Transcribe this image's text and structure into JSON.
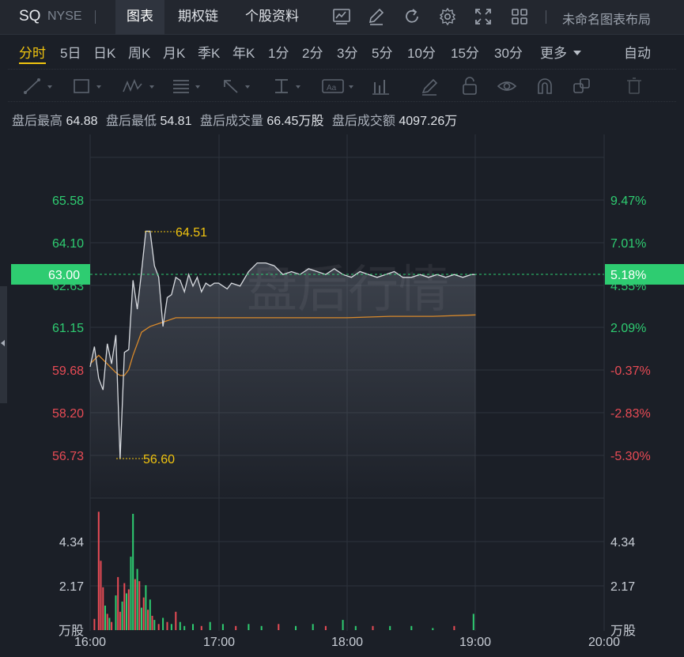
{
  "header": {
    "symbol": "SQ",
    "exchange": "NYSE",
    "tabs": [
      {
        "label": "图表",
        "active": true
      },
      {
        "label": "期权链",
        "active": false
      },
      {
        "label": "个股资料",
        "active": false
      }
    ],
    "toolbar_icons": [
      "chart-settings-icon",
      "edit-icon",
      "refresh-icon",
      "gear-icon",
      "fullscreen-icon",
      "grid-layout-icon"
    ],
    "layout_name": "未命名图表布局"
  },
  "periods": {
    "items": [
      "分时",
      "5日",
      "日K",
      "周K",
      "月K",
      "季K",
      "年K",
      "1分",
      "2分",
      "3分",
      "5分",
      "10分",
      "15分",
      "30分"
    ],
    "active": "分时",
    "more_label": "更多",
    "auto_label": "自动"
  },
  "drawing_tools": [
    "line-tool-icon",
    "rectangle-tool-icon",
    "wave-tool-icon",
    "fibonacci-tool-icon",
    "arrow-tool-icon",
    "measure-tool-icon",
    "text-tool-icon",
    "indicator-tool-icon",
    "brush-icon",
    "lock-icon",
    "eye-icon",
    "magnet-icon",
    "clone-icon",
    "trash-icon"
  ],
  "stats": {
    "high_label": "盘后最高",
    "high_value": "64.88",
    "low_label": "盘后最低",
    "low_value": "54.81",
    "volume_label": "盘后成交量",
    "volume_value": "66.45万股",
    "turnover_label": "盘后成交额",
    "turnover_value": "4097.26万"
  },
  "watermark": "盘后行情",
  "colors": {
    "up": "#2ecc71",
    "down": "#e84b55",
    "price_line": "#d8dbe0",
    "avg_line": "#d98a2b",
    "annotation": "#f1c40f",
    "current_badge": "#2ecc71"
  },
  "chart_data": {
    "type": "line",
    "title": "",
    "xlabel": "",
    "ylabel": "",
    "x_ticks": [
      "16:00",
      "17:00",
      "18:00",
      "19:00",
      "20:00"
    ],
    "price_axis": {
      "left_ticks": [
        "65.58",
        "64.10",
        "61.15",
        "59.68",
        "58.20",
        "56.73"
      ],
      "right_ticks": [
        "9.47%",
        "7.01%",
        "2.09%",
        "-0.37%",
        "-2.83%",
        "-5.30%"
      ],
      "hidden_left": "62.63",
      "hidden_right": "4.55%",
      "ylim": [
        55.26,
        67.05
      ]
    },
    "current_price": "63.00",
    "current_change": "5.18%",
    "high_marker": "64.51",
    "low_marker": "56.60",
    "price_series": {
      "name": "",
      "x_minutes": [
        0,
        2,
        4,
        6,
        8,
        10,
        12,
        14,
        16,
        18,
        20,
        22,
        24,
        26,
        28,
        30,
        32,
        34,
        36,
        38,
        40,
        42,
        44,
        46,
        48,
        50,
        52,
        54,
        56,
        58,
        60,
        62,
        64,
        66,
        70,
        74,
        78,
        82,
        86,
        90,
        94,
        98,
        102,
        106,
        110,
        114,
        118,
        122,
        126,
        130,
        134,
        138,
        142,
        146,
        150,
        154,
        158,
        162,
        166,
        170,
        174,
        178,
        180
      ],
      "values": [
        59.8,
        60.5,
        59.4,
        59.0,
        60.6,
        59.9,
        60.9,
        56.6,
        60.3,
        60.4,
        62.8,
        61.8,
        63.1,
        64.5,
        64.5,
        63.3,
        62.9,
        61.2,
        62.2,
        62.3,
        62.9,
        62.8,
        62.4,
        63.0,
        62.6,
        62.9,
        62.4,
        62.7,
        62.6,
        62.7,
        62.7,
        62.6,
        62.5,
        62.7,
        62.6,
        63.1,
        63.4,
        63.4,
        63.3,
        63.0,
        63.1,
        63.0,
        63.2,
        63.1,
        63.0,
        63.2,
        63.0,
        62.9,
        63.1,
        63.0,
        62.9,
        63.0,
        63.1,
        62.9,
        62.9,
        63.0,
        62.9,
        63.0,
        62.9,
        63.0,
        62.9,
        63.0,
        63.0
      ]
    },
    "avg_series": {
      "name": "",
      "x_minutes": [
        0,
        4,
        8,
        12,
        14,
        16,
        18,
        20,
        24,
        28,
        32,
        36,
        40,
        50,
        60,
        80,
        100,
        120,
        140,
        160,
        180
      ],
      "values": [
        59.9,
        60.2,
        59.9,
        59.6,
        59.5,
        59.5,
        59.7,
        60.2,
        61.0,
        61.2,
        61.3,
        61.4,
        61.5,
        61.5,
        61.5,
        61.5,
        61.5,
        61.5,
        61.55,
        61.55,
        61.6
      ]
    },
    "volume_axis": {
      "ticks": [
        "4.34",
        "2.17"
      ],
      "unit": "万股",
      "ylim": [
        0,
        6.0
      ]
    },
    "volume_series": {
      "name": "",
      "bars": [
        {
          "m": 2,
          "v": 0.55,
          "c": "down"
        },
        {
          "m": 4,
          "v": 5.8,
          "c": "down"
        },
        {
          "m": 5,
          "v": 3.4,
          "c": "down"
        },
        {
          "m": 6,
          "v": 2.1,
          "c": "down"
        },
        {
          "m": 7,
          "v": 1.2,
          "c": "up"
        },
        {
          "m": 8,
          "v": 0.8,
          "c": "down"
        },
        {
          "m": 9,
          "v": 0.6,
          "c": "up"
        },
        {
          "m": 10,
          "v": 0.4,
          "c": "down"
        },
        {
          "m": 12,
          "v": 1.7,
          "c": "up"
        },
        {
          "m": 13,
          "v": 2.6,
          "c": "down"
        },
        {
          "m": 14,
          "v": 0.9,
          "c": "down"
        },
        {
          "m": 15,
          "v": 1.4,
          "c": "up"
        },
        {
          "m": 16,
          "v": 2.3,
          "c": "down"
        },
        {
          "m": 17,
          "v": 1.8,
          "c": "up"
        },
        {
          "m": 18,
          "v": 2.0,
          "c": "down"
        },
        {
          "m": 19,
          "v": 3.6,
          "c": "up"
        },
        {
          "m": 20,
          "v": 5.7,
          "c": "up"
        },
        {
          "m": 21,
          "v": 2.5,
          "c": "down"
        },
        {
          "m": 22,
          "v": 3.0,
          "c": "up"
        },
        {
          "m": 23,
          "v": 2.4,
          "c": "down"
        },
        {
          "m": 24,
          "v": 1.1,
          "c": "up"
        },
        {
          "m": 25,
          "v": 1.6,
          "c": "down"
        },
        {
          "m": 26,
          "v": 2.2,
          "c": "up"
        },
        {
          "m": 27,
          "v": 1.0,
          "c": "down"
        },
        {
          "m": 28,
          "v": 1.5,
          "c": "up"
        },
        {
          "m": 29,
          "v": 0.7,
          "c": "down"
        },
        {
          "m": 30,
          "v": 0.5,
          "c": "up"
        },
        {
          "m": 32,
          "v": 0.3,
          "c": "down"
        },
        {
          "m": 34,
          "v": 0.6,
          "c": "up"
        },
        {
          "m": 36,
          "v": 0.4,
          "c": "down"
        },
        {
          "m": 38,
          "v": 0.3,
          "c": "up"
        },
        {
          "m": 40,
          "v": 0.9,
          "c": "down"
        },
        {
          "m": 42,
          "v": 0.4,
          "c": "up"
        },
        {
          "m": 44,
          "v": 0.2,
          "c": "up"
        },
        {
          "m": 48,
          "v": 0.3,
          "c": "up"
        },
        {
          "m": 52,
          "v": 0.2,
          "c": "down"
        },
        {
          "m": 56,
          "v": 0.4,
          "c": "up"
        },
        {
          "m": 62,
          "v": 0.3,
          "c": "up"
        },
        {
          "m": 68,
          "v": 0.2,
          "c": "down"
        },
        {
          "m": 74,
          "v": 0.3,
          "c": "up"
        },
        {
          "m": 80,
          "v": 0.2,
          "c": "up"
        },
        {
          "m": 88,
          "v": 0.3,
          "c": "down"
        },
        {
          "m": 96,
          "v": 0.2,
          "c": "up"
        },
        {
          "m": 104,
          "v": 0.3,
          "c": "up"
        },
        {
          "m": 110,
          "v": 0.2,
          "c": "down"
        },
        {
          "m": 118,
          "v": 0.5,
          "c": "up"
        },
        {
          "m": 124,
          "v": 0.2,
          "c": "up"
        },
        {
          "m": 132,
          "v": 0.2,
          "c": "down"
        },
        {
          "m": 140,
          "v": 0.2,
          "c": "up"
        },
        {
          "m": 150,
          "v": 0.2,
          "c": "up"
        },
        {
          "m": 160,
          "v": 0.1,
          "c": "up"
        },
        {
          "m": 170,
          "v": 0.2,
          "c": "down"
        },
        {
          "m": 179,
          "v": 0.8,
          "c": "up"
        }
      ]
    }
  }
}
